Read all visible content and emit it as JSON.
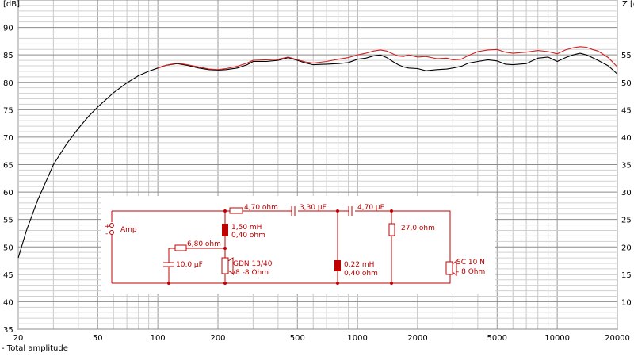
{
  "chart_data": {
    "type": "line",
    "x_scale": "log",
    "xlim": [
      20,
      20000
    ],
    "ylim": [
      35,
      95
    ],
    "ylabel_left": "[dB]",
    "ylabel_right": "Z [o",
    "x_ticks": [
      20,
      50,
      100,
      200,
      500,
      1000,
      2000,
      5000,
      10000,
      20000
    ],
    "y_ticks": [
      35,
      40,
      45,
      50,
      55,
      60,
      65,
      70,
      75,
      80,
      85,
      90
    ],
    "y2_ticks": [
      10,
      15,
      20,
      25,
      30,
      35,
      40,
      45,
      50,
      55
    ],
    "grid": true,
    "legend": "Total amplitude",
    "series": [
      {
        "name": "Total amplitude",
        "color": "#000000",
        "x": [
          20,
          22,
          25,
          28,
          30,
          35,
          40,
          45,
          50,
          60,
          70,
          80,
          90,
          100,
          110,
          125,
          140,
          160,
          180,
          200,
          220,
          250,
          280,
          300,
          350,
          400,
          450,
          500,
          550,
          600,
          700,
          800,
          900,
          1000,
          1100,
          1200,
          1300,
          1400,
          1500,
          1600,
          1700,
          1800,
          2000,
          2200,
          2500,
          2800,
          3000,
          3300,
          3600,
          4000,
          4500,
          5000,
          5500,
          6000,
          7000,
          8000,
          9000,
          10000,
          11000,
          12000,
          13000,
          14000,
          15000,
          16000,
          18000,
          20000
        ],
        "values": [
          48,
          53,
          58.5,
          62.5,
          65,
          68.8,
          71.6,
          73.8,
          75.5,
          78.1,
          79.9,
          81.2,
          82,
          82.6,
          83.1,
          83.4,
          83.1,
          82.6,
          82.3,
          82.2,
          82.3,
          82.6,
          83.2,
          83.8,
          83.8,
          84,
          84.5,
          84,
          83.5,
          83.2,
          83.3,
          83.4,
          83.6,
          84.2,
          84.4,
          84.8,
          85,
          84.5,
          83.8,
          83.2,
          82.8,
          82.6,
          82.5,
          82.1,
          82.3,
          82.4,
          82.6,
          82.9,
          83.5,
          83.8,
          84.1,
          83.9,
          83.3,
          83.2,
          83.4,
          84.4,
          84.6,
          83.8,
          84.5,
          85,
          85.3,
          85,
          84.5,
          84,
          83,
          81.5
        ]
      },
      {
        "name": "",
        "color": "#d02020",
        "x": [
          100,
          110,
          125,
          140,
          160,
          180,
          200,
          220,
          250,
          280,
          300,
          350,
          400,
          450,
          500,
          550,
          600,
          700,
          800,
          900,
          1000,
          1100,
          1200,
          1300,
          1400,
          1500,
          1600,
          1700,
          1800,
          2000,
          2200,
          2500,
          2800,
          3000,
          3300,
          3600,
          4000,
          4500,
          5000,
          5500,
          6000,
          7000,
          8000,
          9000,
          10000,
          11000,
          12000,
          13000,
          14000,
          15000,
          16000,
          18000,
          20000
        ],
        "values": [
          82.6,
          83.1,
          83.5,
          83.2,
          82.8,
          82.4,
          82.3,
          82.5,
          82.9,
          83.5,
          84,
          84.1,
          84.2,
          84.6,
          84.1,
          83.7,
          83.5,
          83.8,
          84.2,
          84.5,
          85,
          85.3,
          85.7,
          85.9,
          85.7,
          85.2,
          84.8,
          84.7,
          85,
          84.6,
          84.7,
          84.3,
          84.4,
          84.1,
          84.2,
          84.9,
          85.6,
          85.9,
          86,
          85.5,
          85.3,
          85.5,
          85.8,
          85.6,
          85.2,
          85.9,
          86.3,
          86.5,
          86.4,
          86,
          85.7,
          84.5,
          82.8
        ]
      }
    ]
  },
  "schematic": {
    "labels": {
      "amp": "Amp",
      "plus": "+",
      "minus": "-",
      "r1": "4,70 ohm",
      "c1": "3,30 µF",
      "c2": "4,70 µF",
      "l1_value": "1,50 mH",
      "l1_res": "0,40 ohm",
      "r2": "6,80 ohm",
      "c3": "10,0 µF",
      "woofer_model": "GDN 13/40",
      "woofer_imp": "/8 -8 Ohm",
      "l2_value": "0,22 mH",
      "l2_res": "0,40 ohm",
      "r3": "27,0 ohm",
      "tweeter_model": "SC 10 N",
      "tweeter_imp": "- 8 Ohm"
    }
  }
}
